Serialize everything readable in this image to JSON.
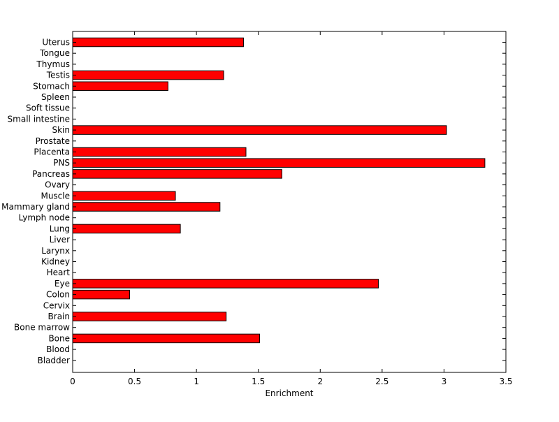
{
  "chart_data": {
    "type": "bar",
    "orientation": "horizontal",
    "categories": [
      "Uterus",
      "Tongue",
      "Thymus",
      "Testis",
      "Stomach",
      "Spleen",
      "Soft tissue",
      "Small intestine",
      "Skin",
      "Prostate",
      "Placenta",
      "PNS",
      "Pancreas",
      "Ovary",
      "Muscle",
      "Mammary gland",
      "Lymph node",
      "Lung",
      "Liver",
      "Larynx",
      "Kidney",
      "Heart",
      "Eye",
      "Colon",
      "Cervix",
      "Brain",
      "Bone marrow",
      "Bone",
      "Blood",
      "Bladder"
    ],
    "values": [
      1.38,
      0,
      0,
      1.22,
      0.77,
      0,
      0,
      0,
      3.02,
      0,
      1.4,
      3.33,
      1.69,
      0,
      0.83,
      1.19,
      0,
      0.87,
      0,
      0,
      0,
      0,
      2.47,
      0.46,
      0,
      1.24,
      0,
      1.51,
      0,
      0
    ],
    "xlabel": "Enrichment",
    "ylabel": "",
    "title": "",
    "xlim": [
      0,
      3.5
    ],
    "xticks": [
      "0",
      "0.5",
      "1",
      "1.5",
      "2",
      "2.5",
      "3",
      "3.5"
    ],
    "bar_color": "#ff0000",
    "edge_color": "#000000",
    "grid": false
  }
}
